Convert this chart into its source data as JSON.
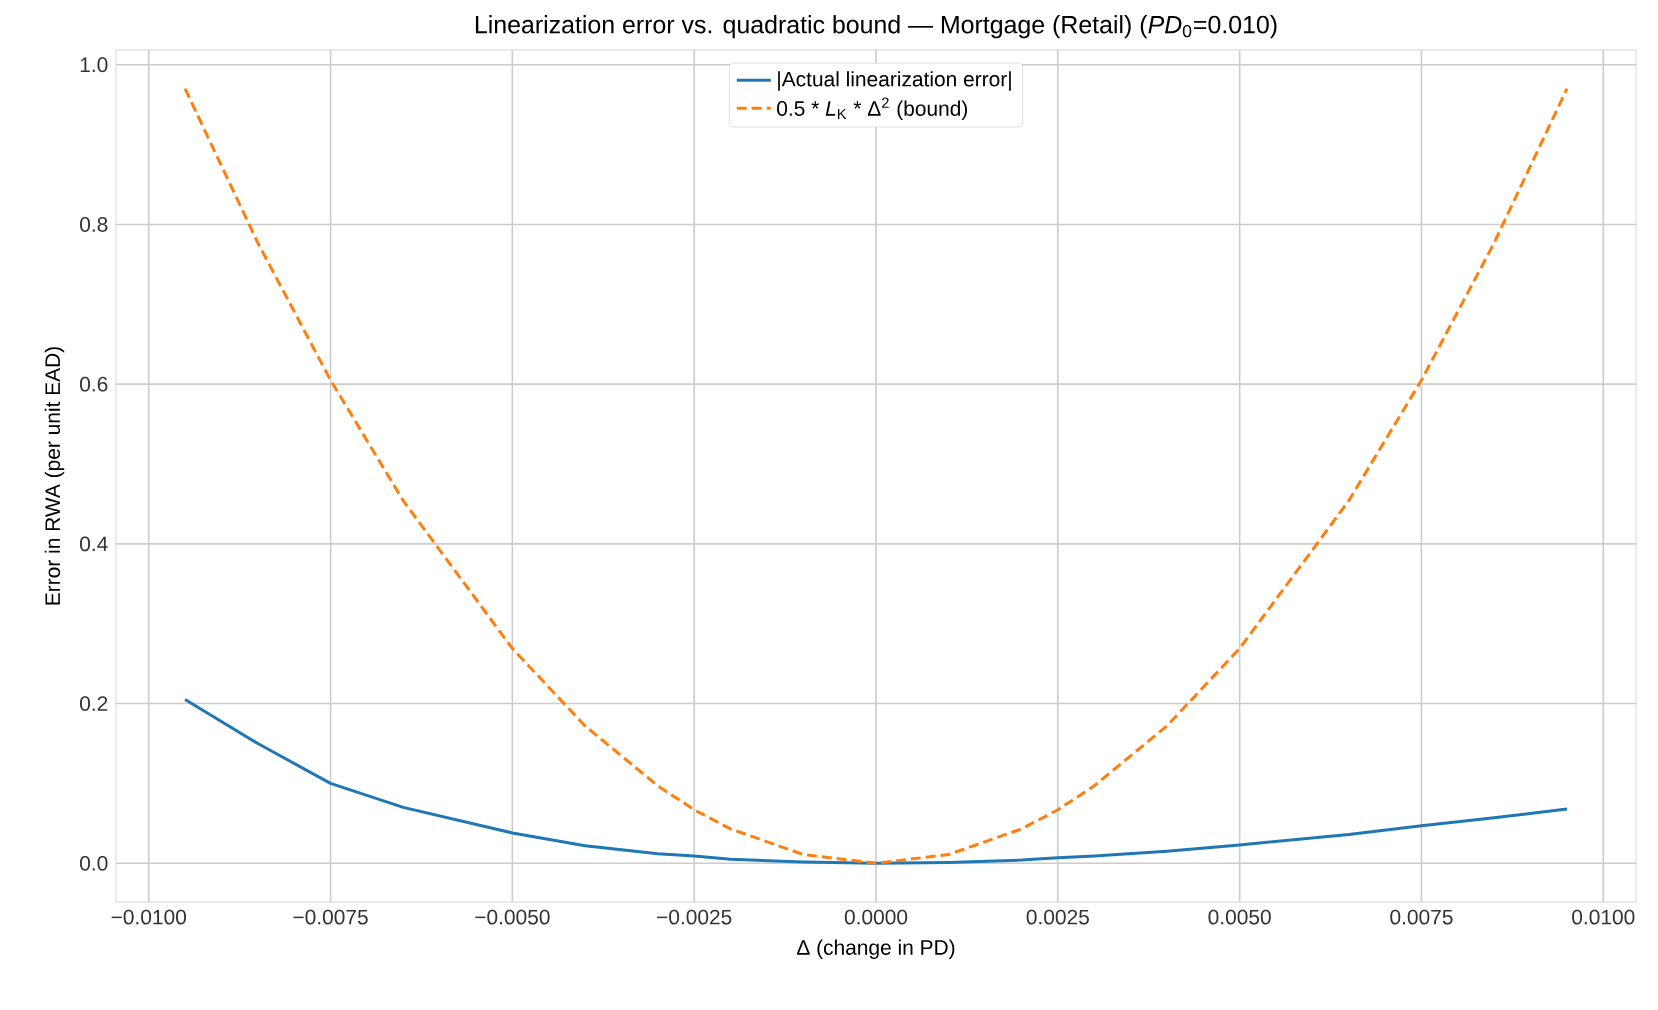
{
  "chart_data": {
    "type": "line",
    "title": "Linearization error vs. quadratic bound — Mortgage (Retail) (*PD*$_{0}$=0.010)",
    "xlabel": "Δ (change in PD)",
    "ylabel": "Error in RWA (per unit EAD)",
    "xlim": [
      -0.01045,
      0.01045
    ],
    "ylim": [
      -0.0485,
      1.0185
    ],
    "xticks": [
      {
        "value": -0.01,
        "label": "−0.0100"
      },
      {
        "value": -0.0075,
        "label": "−0.0075"
      },
      {
        "value": -0.005,
        "label": "−0.0050"
      },
      {
        "value": -0.0025,
        "label": "−0.0025"
      },
      {
        "value": 0,
        "label": "0.0000"
      },
      {
        "value": 0.0025,
        "label": "0.0025"
      },
      {
        "value": 0.005,
        "label": "0.0050"
      },
      {
        "value": 0.0075,
        "label": "0.0075"
      },
      {
        "value": 0.01,
        "label": "0.0100"
      }
    ],
    "yticks": [
      {
        "value": 0,
        "label": "0.0"
      },
      {
        "value": 0.2,
        "label": "0.2"
      },
      {
        "value": 0.4,
        "label": "0.4"
      },
      {
        "value": 0.6,
        "label": "0.6"
      },
      {
        "value": 0.8,
        "label": "0.8"
      },
      {
        "value": 1.0,
        "label": "1.0"
      }
    ],
    "x": [
      -0.0095,
      -0.0085,
      -0.0075,
      -0.0065,
      -0.005,
      -0.004,
      -0.003,
      -0.0025,
      -0.002,
      -0.001,
      0,
      0.001,
      0.002,
      0.0025,
      0.003,
      0.004,
      0.005,
      0.0065,
      0.0075,
      0.0085,
      0.0095
    ],
    "grid": true,
    "legend": "top",
    "series": [
      {
        "name": "|Actual linearization error|",
        "color": "#1f77b4",
        "line_style": "solid",
        "values": [
          0.205,
          0.15,
          0.1,
          0.07,
          0.038,
          0.022,
          0.012,
          0.009,
          0.005,
          0.0015,
          0,
          0.001,
          0.004,
          0.007,
          0.009,
          0.015,
          0.023,
          0.036,
          0.047,
          0.057,
          0.068
        ]
      },
      {
        "name": "0.5 * *L*$_{K}$ * Δ$^{2}$ (bound)",
        "color": "#ff7f0e",
        "line_style": "dashed",
        "values": [
          0.97,
          0.777,
          0.605,
          0.454,
          0.269,
          0.172,
          0.097,
          0.067,
          0.043,
          0.011,
          0,
          0.011,
          0.043,
          0.067,
          0.097,
          0.172,
          0.269,
          0.454,
          0.605,
          0.777,
          0.97
        ]
      }
    ]
  }
}
